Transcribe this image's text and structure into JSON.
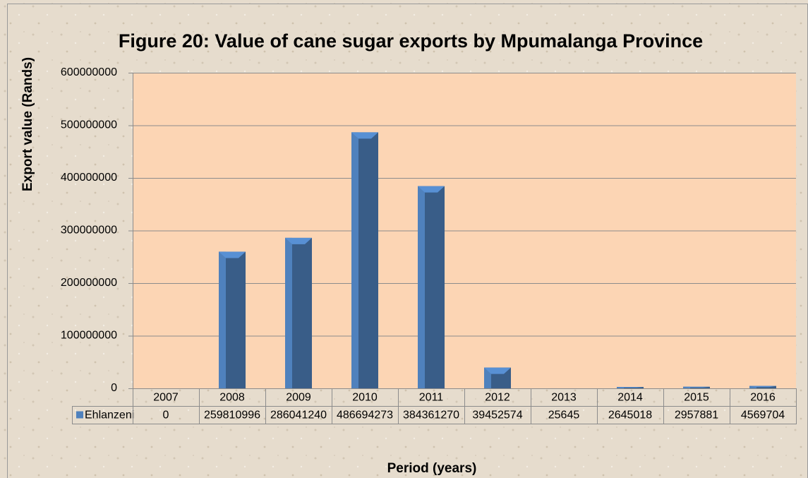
{
  "chart_data": {
    "type": "bar",
    "title": "Figure 20: Value of cane sugar exports by Mpumalanga Province",
    "y_label": "Export value (Rands)",
    "x_label": "Period (years)",
    "categories": [
      "2007",
      "2008",
      "2009",
      "2010",
      "2011",
      "2012",
      "2013",
      "2014",
      "2015",
      "2016"
    ],
    "series": [
      {
        "name": "Ehlanzeni",
        "color": "#4f81bd",
        "values": [
          0,
          259810996,
          286041240,
          486694273,
          384361270,
          39452574,
          25645,
          2645018,
          2957881,
          4569704
        ]
      }
    ],
    "ylim": [
      0,
      600000000
    ],
    "yticks": [
      0,
      100000000,
      200000000,
      300000000,
      400000000,
      500000000,
      600000000
    ],
    "grid": true,
    "data_table": true
  }
}
